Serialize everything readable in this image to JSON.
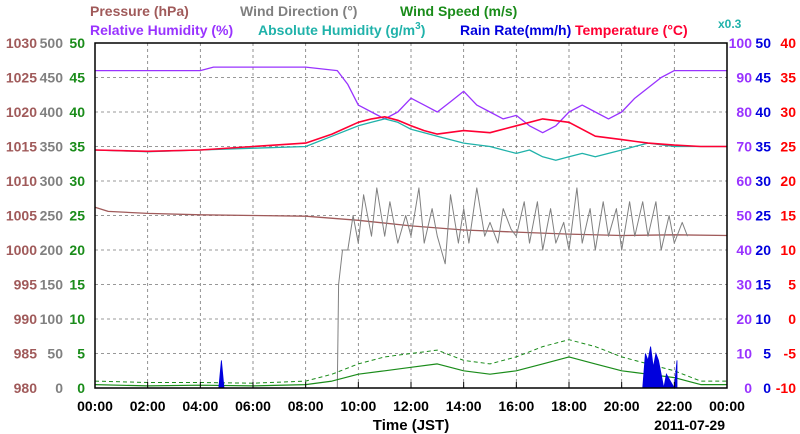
{
  "chart_data": {
    "type": "line",
    "xlabel": "Time (JST)",
    "date_label": "2011-07-29",
    "x_ticks": [
      "00:00",
      "02:00",
      "04:00",
      "06:00",
      "08:00",
      "10:00",
      "12:00",
      "14:00",
      "16:00",
      "18:00",
      "20:00",
      "22:00",
      "00:00"
    ],
    "legend": {
      "pressure": "Pressure (hPa)",
      "wind_direction": "Wind Direction (°)",
      "wind_speed": "Wind Speed (m/s)",
      "relative_humidity": "Relative Humidity (%)",
      "absolute_humidity_pre": "Absolute Humidity (g/m",
      "absolute_humidity_sup": "3",
      "absolute_humidity_post": ")",
      "rain_rate": "Rain Rate(mm/h)",
      "temperature": "Temperature (°C)",
      "multiplier": "x0.3"
    },
    "axes": {
      "pressure": {
        "ticks": [
          "1030",
          "1025",
          "1020",
          "1015",
          "1010",
          "1005",
          "1000",
          "995",
          "990",
          "985",
          "980"
        ],
        "range": [
          980,
          1030
        ],
        "color": "#a05a5a"
      },
      "wind_direction": {
        "ticks": [
          "500",
          "450",
          "400",
          "350",
          "300",
          "250",
          "200",
          "150",
          "100",
          "50",
          "0"
        ],
        "range": [
          0,
          500
        ],
        "color": "#808080"
      },
      "wind_speed": {
        "ticks": [
          "50",
          "45",
          "40",
          "35",
          "30",
          "25",
          "20",
          "15",
          "10",
          "5",
          "0"
        ],
        "range": [
          0,
          50
        ],
        "color": "#1a8c1a"
      },
      "relative_humidity": {
        "ticks": [
          "100",
          "90",
          "80",
          "70",
          "60",
          "50",
          "40",
          "30",
          "20",
          "10",
          "0"
        ],
        "range": [
          0,
          100
        ],
        "color": "#9933ff"
      },
      "rain_rate": {
        "ticks": [
          "50",
          "45",
          "40",
          "35",
          "30",
          "25",
          "20",
          "15",
          "10",
          "5",
          "0"
        ],
        "range": [
          0,
          50
        ],
        "color": "#0000dd"
      },
      "temperature": {
        "ticks": [
          "40",
          "35",
          "30",
          "25",
          "20",
          "15",
          "10",
          "5",
          "0",
          "-5",
          "-10"
        ],
        "range": [
          -10,
          40
        ],
        "color": "#ff0000"
      }
    },
    "colors": {
      "pressure": "#a05a5a",
      "wind_direction": "#808080",
      "wind_speed": "#1a8c1a",
      "relative_humidity": "#9933ff",
      "absolute_humidity": "#20b2aa",
      "rain_rate": "#0000dd",
      "temperature": "#ff0033"
    },
    "series": [
      {
        "key": "relative_humidity",
        "axis": "relative_humidity",
        "x": [
          0,
          4,
          4.5,
          8,
          9.2,
          9.6,
          10,
          10.5,
          11,
          11.5,
          12,
          12.5,
          13,
          13.5,
          14,
          14.5,
          15,
          15.5,
          16,
          16.5,
          17,
          17.5,
          18,
          18.5,
          19,
          19.5,
          20,
          20.5,
          21,
          21.5,
          22,
          23,
          24
        ],
        "y": [
          92,
          92,
          93,
          93,
          92,
          88,
          82,
          80,
          78,
          80,
          84,
          82,
          80,
          83,
          86,
          82,
          80,
          78,
          79,
          76,
          74,
          76,
          80,
          82,
          80,
          78,
          80,
          84,
          87,
          90,
          92,
          92,
          92
        ]
      },
      {
        "key": "absolute_humidity",
        "axis": "relative_humidity",
        "x": [
          0,
          2,
          4,
          6,
          8,
          9,
          10,
          10.5,
          11,
          11.5,
          12,
          12.5,
          13,
          14,
          15,
          15.5,
          16,
          16.5,
          17,
          17.5,
          18,
          18.5,
          19,
          19.5,
          20,
          20.5,
          21,
          22,
          23,
          24
        ],
        "y": [
          69,
          68.5,
          69,
          69.5,
          70,
          73,
          76,
          77,
          78,
          77,
          75,
          74,
          73,
          71,
          70,
          69,
          68,
          69,
          67,
          66,
          67,
          68,
          67,
          68,
          69,
          70,
          71,
          70,
          70,
          70
        ]
      },
      {
        "key": "temperature",
        "axis": "temperature",
        "x": [
          0,
          2,
          4,
          6,
          8,
          9,
          10,
          10.5,
          11,
          11.5,
          12,
          12.5,
          13,
          14,
          15,
          16,
          17,
          18,
          19,
          20,
          21,
          22,
          23,
          24
        ],
        "y": [
          24.5,
          24.3,
          24.5,
          25,
          25.5,
          26.8,
          28.5,
          29,
          29.3,
          28.8,
          28,
          27.3,
          26.8,
          27.3,
          27,
          28,
          29,
          28.5,
          26.5,
          26,
          25.5,
          25.2,
          25,
          25
        ]
      },
      {
        "key": "pressure",
        "axis": "pressure",
        "x": [
          0,
          0.5,
          2,
          4,
          6,
          8,
          10,
          12,
          14,
          16,
          18,
          20,
          22,
          24
        ],
        "y": [
          1006.2,
          1005.6,
          1005.3,
          1005.1,
          1005.0,
          1004.9,
          1004.3,
          1003.5,
          1002.9,
          1002.6,
          1002.3,
          1002.1,
          1002.2,
          1002.1
        ]
      },
      {
        "key": "wind_direction",
        "axis": "wind_direction",
        "x": [
          0,
          9.2,
          9.25,
          9.4,
          9.6,
          9.8,
          10,
          10.2,
          10.5,
          10.7,
          11,
          11.2,
          11.5,
          11.8,
          12,
          12.3,
          12.5,
          12.8,
          13,
          13.3,
          13.5,
          13.8,
          14,
          14.2,
          14.5,
          14.8,
          15,
          15.3,
          15.5,
          15.8,
          16,
          16.3,
          16.5,
          16.8,
          17,
          17.3,
          17.5,
          17.8,
          18,
          18.3,
          18.5,
          18.8,
          19,
          19.3,
          19.5,
          19.8,
          20,
          20.3,
          20.5,
          20.8,
          21,
          21.3,
          21.5,
          21.8,
          22,
          22.3,
          22.5
        ],
        "y": [
          0,
          0,
          150,
          200,
          200,
          250,
          210,
          280,
          220,
          290,
          220,
          270,
          210,
          250,
          220,
          290,
          210,
          260,
          220,
          180,
          280,
          210,
          260,
          210,
          290,
          220,
          240,
          210,
          260,
          230,
          220,
          270,
          210,
          270,
          200,
          260,
          210,
          240,
          200,
          290,
          210,
          260,
          200,
          270,
          220,
          260,
          200,
          270,
          220,
          270,
          220,
          270,
          200,
          250,
          210,
          240,
          220
        ]
      },
      {
        "key": "wind_speed",
        "axis": "wind_speed",
        "x": [
          0,
          2,
          4,
          6,
          8,
          9,
          10,
          11,
          12,
          13,
          14,
          15,
          16,
          17,
          18,
          19,
          20,
          21,
          22,
          23,
          24
        ],
        "y": [
          0.5,
          0.3,
          0.4,
          0.3,
          0.5,
          1,
          2,
          2.5,
          3,
          3.5,
          2.5,
          2,
          2.5,
          3.5,
          4.5,
          3.5,
          2.5,
          2,
          1.5,
          0.5,
          0.5
        ]
      },
      {
        "key": "wind_speed_max",
        "axis": "wind_speed",
        "x": [
          0,
          2,
          4,
          6,
          8,
          9,
          10,
          11,
          12,
          13,
          14,
          15,
          16,
          17,
          18,
          19,
          20,
          21,
          22,
          23,
          24
        ],
        "y": [
          1,
          0.8,
          0.8,
          0.7,
          1,
          2,
          3.5,
          4.5,
          5,
          5.5,
          4,
          3.5,
          4.5,
          6,
          7,
          6,
          4.5,
          3.5,
          2.5,
          1,
          1
        ]
      },
      {
        "key": "rain_rate",
        "axis": "rain_rate",
        "x": [
          4.7,
          4.8,
          4.9,
          20.8,
          20.9,
          21.0,
          21.1,
          21.2,
          21.3,
          21.4,
          21.6,
          21.7,
          22.0,
          22.1
        ],
        "y": [
          0,
          4,
          0,
          0,
          5,
          4,
          6,
          3,
          5,
          4,
          0,
          2,
          0,
          4
        ]
      }
    ]
  }
}
